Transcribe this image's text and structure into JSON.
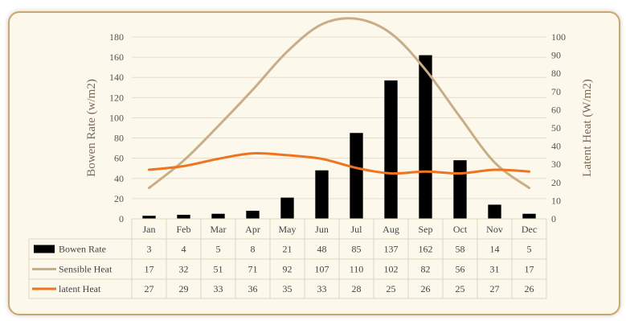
{
  "chart_data": {
    "type": "bar-line-combo",
    "categories": [
      "Jan",
      "Feb",
      "Mar",
      "Apr",
      "May",
      "Jun",
      "Jul",
      "Aug",
      "Sep",
      "Oct",
      "Nov",
      "Dec"
    ],
    "series": [
      {
        "name": "Bowen Rate",
        "type": "bar",
        "axis": "left",
        "color": "#000000",
        "values": [
          3,
          4,
          5,
          8,
          21,
          48,
          85,
          137,
          162,
          58,
          14,
          5
        ]
      },
      {
        "name": "Sensible Heat",
        "type": "line",
        "axis": "right",
        "color": "#c8ae87",
        "values": [
          17,
          32,
          51,
          71,
          92,
          107,
          110,
          102,
          82,
          56,
          31,
          17
        ]
      },
      {
        "name": "latent Heat",
        "type": "line",
        "axis": "right",
        "color": "#ef7420",
        "values": [
          27,
          29,
          33,
          36,
          35,
          33,
          28,
          25,
          26,
          25,
          27,
          26
        ]
      }
    ],
    "ylabel_left": "Bowen Rate (w/m2)",
    "ylabel_right": "Latent Heat (W/m2)",
    "ylim_left": [
      0,
      180
    ],
    "ylim_right": [
      0,
      100
    ],
    "yticks_left": [
      "0",
      "20",
      "40",
      "60",
      "80",
      "100",
      "120",
      "140",
      "160",
      "180"
    ],
    "yticks_right": [
      "0",
      "10",
      "20",
      "30",
      "40",
      "50",
      "60",
      "70",
      "80",
      "90",
      "100"
    ],
    "grid": true,
    "data_table": true
  }
}
